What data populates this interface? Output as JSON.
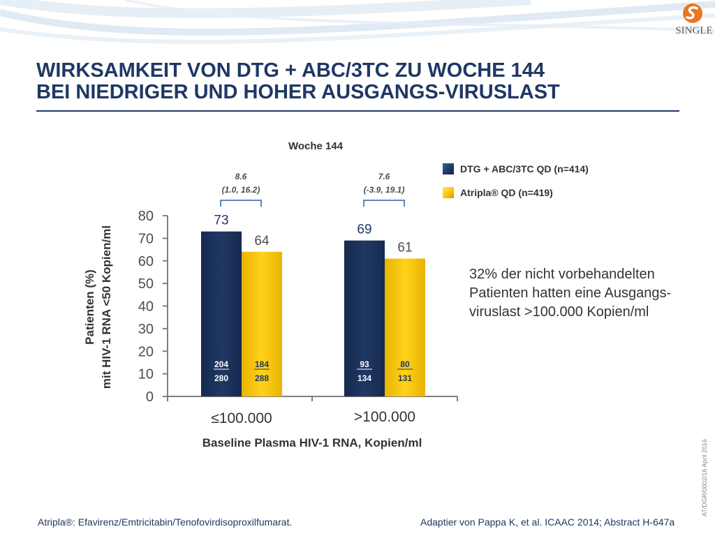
{
  "slide": {
    "title_line1": "WIRKSAMKEIT VON DTG + ABC/3TC  ZU WOCHE 144",
    "title_line2": "BEI NIEDRIGER UND HOHER AUSGANGS-VIRUSLAST",
    "logo_text": "SINGLE",
    "note": "32%  der nicht vorbehandelten Patienten hatten eine Ausgangs-viruslast >100.000 Kopien/ml",
    "footer_left": "Atripla®: Efavirenz/Emtricitabin/Tenofovirdisoproxilfumarat.",
    "footer_right": "Adaptier von Pappa K, et al. ICAAC 2014; Abstract H-647a",
    "side_code": "AT/DGR/0002/16  April 2016"
  },
  "colors": {
    "title": "#1f3864",
    "dtg": "#1f3864",
    "atripla": "#f5c400",
    "axis": "#7f7f7f",
    "bracket": "#2e5fa0"
  },
  "chart_data": {
    "type": "bar",
    "title": "Woche 144",
    "xlabel": "Baseline Plasma HIV-1 RNA, Kopien/ml",
    "ylabel_line1": "Patienten (%)",
    "ylabel_line2": "mit HIV-1 RNA <50 Kopien/ml",
    "ylim": [
      0,
      80
    ],
    "yticks": [
      0,
      10,
      20,
      30,
      40,
      50,
      60,
      70,
      80
    ],
    "categories": [
      "≤100.000",
      ">100.000"
    ],
    "series": [
      {
        "name": "DTG + ABC/3TC QD (n=414)",
        "values": [
          73,
          69
        ],
        "fractions": [
          {
            "numerator": "204",
            "denominator": "280"
          },
          {
            "numerator": "93",
            "denominator": "134"
          }
        ]
      },
      {
        "name": "Atripla® QD (n=419)",
        "values": [
          64,
          61
        ],
        "fractions": [
          {
            "numerator": "184",
            "denominator": "288"
          },
          {
            "numerator": "80",
            "denominator": "131"
          }
        ]
      }
    ],
    "differences": [
      {
        "value": "8.6",
        "ci": "(1.0, 16.2)"
      },
      {
        "value": "7.6",
        "ci": "(-3.9, 19.1)"
      }
    ],
    "grid": false,
    "legend_position": "top-right"
  }
}
